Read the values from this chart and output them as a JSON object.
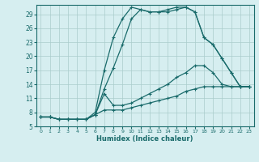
{
  "xlabel": "Humidex (Indice chaleur)",
  "bg_color": "#d6eef0",
  "line_color": "#1a6b6b",
  "grid_color": "#aacccc",
  "xlim": [
    -0.5,
    23.5
  ],
  "ylim": [
    5,
    31
  ],
  "xticks": [
    0,
    1,
    2,
    3,
    4,
    5,
    6,
    7,
    8,
    9,
    10,
    11,
    12,
    13,
    14,
    15,
    16,
    17,
    18,
    19,
    20,
    21,
    22,
    23
  ],
  "yticks": [
    5,
    8,
    11,
    14,
    17,
    20,
    23,
    26,
    29
  ],
  "lines_y": [
    [
      7.0,
      7.0,
      6.5,
      6.5,
      6.5,
      6.5,
      7.5,
      13.0,
      17.5,
      22.5,
      28.0,
      30.0,
      29.5,
      29.5,
      30.0,
      30.5,
      30.5,
      29.5,
      24.0,
      22.5,
      19.5,
      16.5,
      13.5,
      13.5
    ],
    [
      7.0,
      7.0,
      6.5,
      6.5,
      6.5,
      6.5,
      8.0,
      17.0,
      24.0,
      28.0,
      30.5,
      30.0,
      29.5,
      29.5,
      29.5,
      30.0,
      30.5,
      29.5,
      24.0,
      22.5,
      19.5,
      16.5,
      13.5,
      13.5
    ],
    [
      7.0,
      7.0,
      6.5,
      6.5,
      6.5,
      6.5,
      7.5,
      12.0,
      9.5,
      9.5,
      10.0,
      11.0,
      12.0,
      13.0,
      14.0,
      15.5,
      16.5,
      18.0,
      18.0,
      16.5,
      14.0,
      13.5,
      13.5,
      13.5
    ],
    [
      7.0,
      7.0,
      6.5,
      6.5,
      6.5,
      6.5,
      7.5,
      8.5,
      8.5,
      8.5,
      9.0,
      9.5,
      10.0,
      10.5,
      11.0,
      11.5,
      12.5,
      13.0,
      13.5,
      13.5,
      13.5,
      13.5,
      13.5,
      13.5
    ]
  ]
}
